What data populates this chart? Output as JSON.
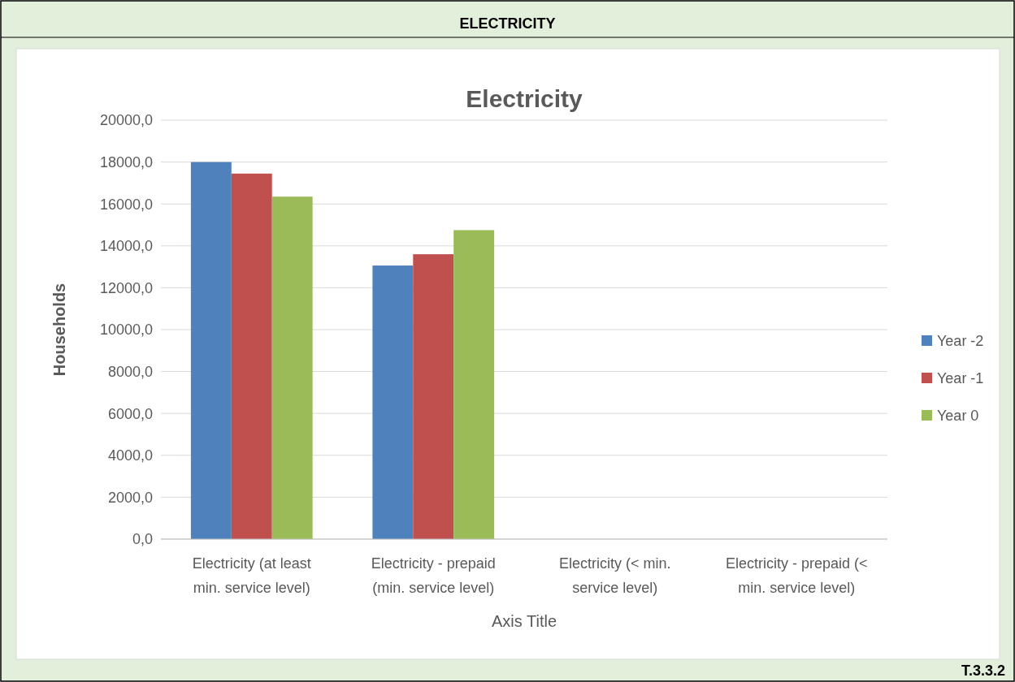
{
  "chart_data": {
    "type": "bar",
    "title": "Electricity",
    "xlabel": "Axis Title",
    "ylabel": "Households",
    "annotations": [
      "ELECTRICITY",
      "T.3.3.2"
    ],
    "categories": [
      "Electricity (at least min. service level)",
      "Electricity - prepaid (min. service level)",
      "Electricity (< min. service level)",
      "Electricity - prepaid (< min. service level)"
    ],
    "series": [
      {
        "name": "Year -2",
        "color": "#4f81bd",
        "values": [
          18000,
          13060,
          null,
          null
        ]
      },
      {
        "name": "Year -1",
        "color": "#c0504d",
        "values": [
          17450,
          13600,
          null,
          null
        ]
      },
      {
        "name": "Year 0",
        "color": "#9bbb59",
        "values": [
          16350,
          14750,
          null,
          null
        ]
      }
    ],
    "ylim": [
      0,
      20000
    ],
    "yticks": [
      {
        "value": 0,
        "label": "0,0"
      },
      {
        "value": 2000,
        "label": "2000,0"
      },
      {
        "value": 4000,
        "label": "4000,0"
      },
      {
        "value": 6000,
        "label": "6000,0"
      },
      {
        "value": 8000,
        "label": "8000,0"
      },
      {
        "value": 10000,
        "label": "10000,0"
      },
      {
        "value": 12000,
        "label": "12000,0"
      },
      {
        "value": 14000,
        "label": "14000,0"
      },
      {
        "value": 16000,
        "label": "16000,0"
      },
      {
        "value": 18000,
        "label": "18000,0"
      },
      {
        "value": 20000,
        "label": "20000,0"
      }
    ],
    "grid": "y",
    "legend": "right"
  }
}
